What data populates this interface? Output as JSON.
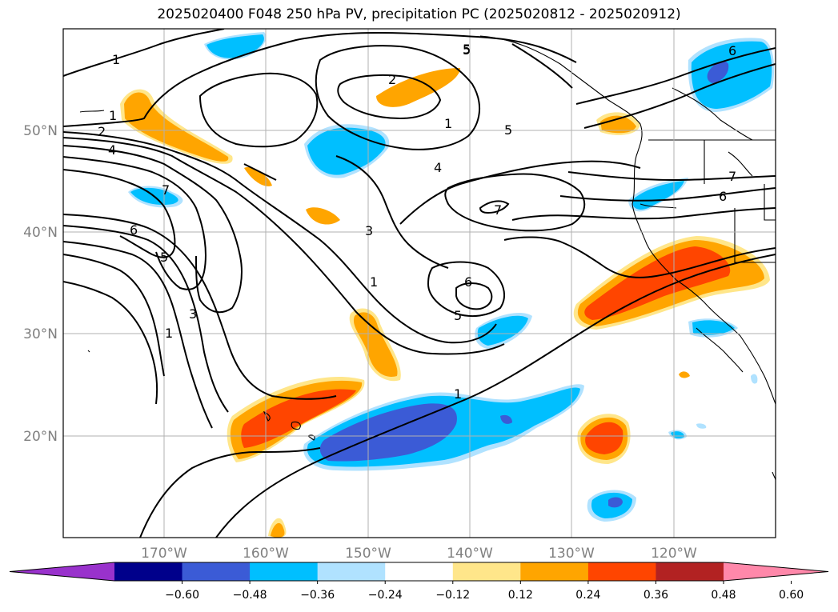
{
  "title": "2025020400 F048 250 hPa PV, precipitation PC (2025020812 - 2025020912)",
  "colors": {
    "land_outline": "#000000",
    "grid": "#b0b0b0",
    "contour": "#000000",
    "neg_1": "#3b5bd6",
    "neg_2": "#00bfff",
    "neg_3": "#b0e2ff",
    "pos_1": "#ffe68a",
    "pos_2": "#ffa500",
    "pos_3": "#ff4500"
  },
  "latitude_labels": [
    "50°N",
    "40°N",
    "30°N",
    "20°N"
  ],
  "longitude_labels": [
    "170°W",
    "160°W",
    "150°W",
    "140°W",
    "130°W",
    "120°W"
  ],
  "contour_labels": [
    "1",
    "2",
    "4",
    "7",
    "6",
    "5",
    "3",
    "1",
    "1",
    "2",
    "1",
    "5",
    "4",
    "5",
    "3",
    "1",
    "6",
    "5",
    "7",
    "6",
    "7",
    "6",
    "5",
    "1"
  ],
  "colorbar": {
    "ticks": [
      "−0.60",
      "−0.48",
      "−0.36",
      "−0.24",
      "−0.12",
      "0.12",
      "0.24",
      "0.36",
      "0.48",
      "0.60"
    ],
    "colors": [
      "#9932cc",
      "#00008b",
      "#3b5bd6",
      "#00bfff",
      "#b0e2ff",
      "#ffffff",
      "#ffe68a",
      "#ffa500",
      "#ff4500",
      "#b22222",
      "#ff88aa"
    ]
  }
}
